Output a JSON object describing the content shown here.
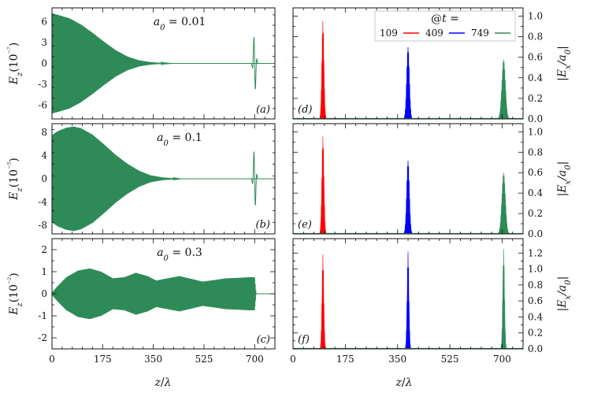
{
  "chart_data": [
    {
      "id": "a",
      "type": "line",
      "panel_label": "(a)",
      "annotation": "a₀ = 0.01",
      "ylabel": "E_z (10⁻⁷)",
      "xlim": [
        0,
        770
      ],
      "ylim": [
        -8,
        8
      ],
      "yticks": [
        -6,
        -3,
        0,
        3,
        6
      ],
      "xticks": [
        0,
        175,
        350,
        525,
        700
      ],
      "color": "#2e8b57",
      "envelope": {
        "z": [
          0,
          20,
          60,
          100,
          140,
          180,
          220,
          260,
          300,
          340,
          380,
          420,
          700
        ],
        "amp": [
          7.2,
          7.0,
          6.5,
          5.6,
          4.4,
          3.1,
          1.9,
          1.0,
          0.45,
          0.18,
          0.06,
          0.0,
          0.0
        ]
      },
      "pulse": {
        "z": 700,
        "amp": 4.7,
        "width": 4
      }
    },
    {
      "id": "b",
      "type": "line",
      "panel_label": "(b)",
      "annotation": "a₀ = 0.1",
      "ylabel": "E_z (10⁻⁵)",
      "xlim": [
        0,
        770
      ],
      "ylim": [
        -9.5,
        9.5
      ],
      "yticks": [
        -8,
        -4,
        0,
        4,
        8
      ],
      "xticks": [
        0,
        175,
        350,
        525,
        700
      ],
      "color": "#2e8b57",
      "envelope": {
        "z": [
          0,
          20,
          50,
          75,
          100,
          140,
          180,
          220,
          260,
          300,
          340,
          380,
          420,
          450,
          700
        ],
        "amp": [
          7.5,
          8.2,
          8.8,
          9.0,
          8.7,
          7.6,
          5.9,
          4.1,
          2.6,
          1.4,
          0.6,
          0.25,
          0.08,
          0.0,
          0.0
        ]
      },
      "pulse": {
        "z": 700,
        "amp": 5.8,
        "width": 4
      }
    },
    {
      "id": "c",
      "type": "line",
      "panel_label": "(c)",
      "annotation": "a₀ = 0.3",
      "ylabel": "E_z (10⁻²)",
      "xlim": [
        0,
        770
      ],
      "ylim": [
        -2.5,
        2.5
      ],
      "yticks": [
        -2,
        -1,
        0,
        1,
        2
      ],
      "xticks": [
        0,
        175,
        350,
        525,
        700
      ],
      "color": "#2e8b57",
      "envelope": {
        "z": [
          0,
          20,
          50,
          90,
          130,
          170,
          210,
          250,
          290,
          330,
          360,
          400,
          440,
          480,
          520,
          560,
          600,
          640,
          680,
          700,
          705
        ],
        "amp": [
          0.05,
          0.35,
          0.75,
          1.05,
          1.15,
          1.0,
          0.7,
          0.75,
          0.95,
          0.8,
          0.6,
          0.7,
          0.8,
          0.68,
          0.55,
          0.62,
          0.7,
          0.72,
          0.75,
          0.75,
          0.0
        ]
      }
    },
    {
      "id": "d",
      "type": "area",
      "panel_label": "(d)",
      "ylabel": "|E_x/a₀|",
      "xlim": [
        0,
        770
      ],
      "ylim": [
        0,
        1.08
      ],
      "yticks": [
        0.0,
        0.2,
        0.4,
        0.6,
        0.8,
        1.0
      ],
      "xticks": [
        0,
        175,
        350,
        525,
        700
      ],
      "legend": {
        "title": "@t =",
        "placement": "top-right"
      },
      "series": [
        {
          "name": "109",
          "color": "#ff0000",
          "center": 100,
          "peak": 0.96,
          "width": 3.5
        },
        {
          "name": "409",
          "color": "#0000ff",
          "center": 385,
          "peak": 0.74,
          "width": 4.5
        },
        {
          "name": "749",
          "color": "#2e8b57",
          "center": 705,
          "peak": 0.58,
          "width": 6
        }
      ]
    },
    {
      "id": "e",
      "type": "area",
      "panel_label": "(e)",
      "ylabel": "|E_x/a₀|",
      "xlim": [
        0,
        770
      ],
      "ylim": [
        0,
        1.08
      ],
      "yticks": [
        0.0,
        0.2,
        0.4,
        0.6,
        0.8,
        1.0
      ],
      "xticks": [
        0,
        175,
        350,
        525,
        700
      ],
      "series": [
        {
          "name": "109",
          "color": "#ff0000",
          "center": 100,
          "peak": 0.96,
          "width": 3.5
        },
        {
          "name": "409",
          "color": "#0000ff",
          "center": 385,
          "peak": 0.76,
          "width": 4.5
        },
        {
          "name": "749",
          "color": "#2e8b57",
          "center": 705,
          "peak": 0.6,
          "width": 6
        }
      ]
    },
    {
      "id": "f",
      "type": "area",
      "panel_label": "(f)",
      "ylabel": "|E_x/a₀|",
      "xlim": [
        0,
        770
      ],
      "ylim": [
        0,
        1.38
      ],
      "yticks": [
        0.0,
        0.2,
        0.4,
        0.6,
        0.8,
        1.0,
        1.2
      ],
      "xticks": [
        0,
        175,
        350,
        525,
        700
      ],
      "series": [
        {
          "name": "109",
          "color": "#ff0000",
          "center": 100,
          "peak": 1.18,
          "width": 3
        },
        {
          "name": "409",
          "color": "#0000ff",
          "center": 385,
          "peak": 1.22,
          "width": 3
        },
        {
          "name": "749",
          "color": "#2e8b57",
          "center": 705,
          "peak": 1.25,
          "width": 3
        }
      ]
    }
  ],
  "axes_text": {
    "xlabel": "z/λ",
    "legend_title": "@t ="
  }
}
